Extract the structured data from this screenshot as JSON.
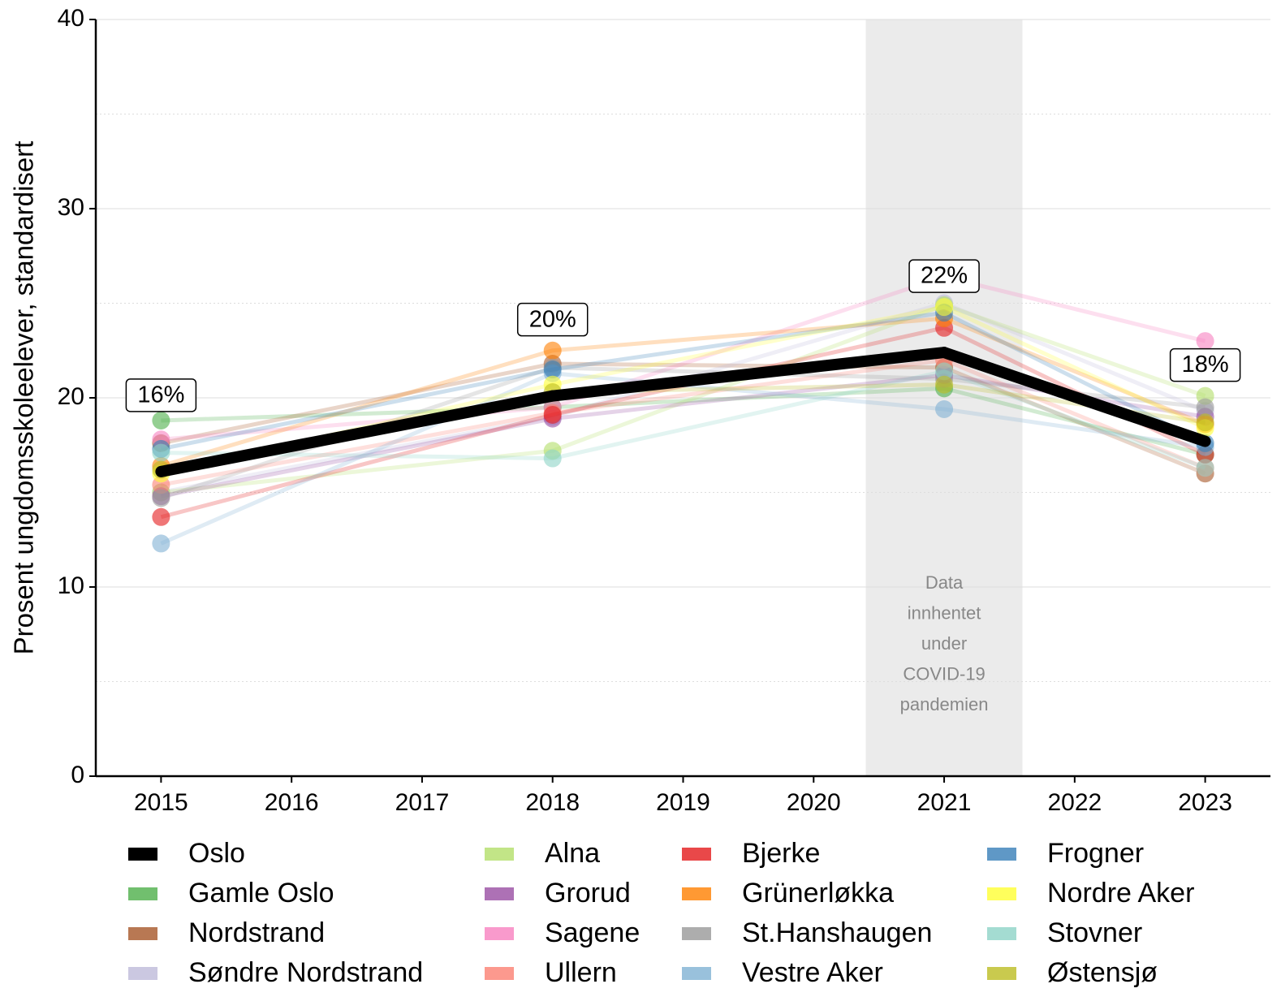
{
  "chart_data": {
    "type": "line",
    "y_label": "Prosent ungdomsskoleelever, standardisert",
    "x": [
      2015,
      2018,
      2021,
      2023
    ],
    "xlim": [
      2014.5,
      2023.5
    ],
    "xticks": [
      2015,
      2016,
      2017,
      2018,
      2019,
      2020,
      2021,
      2022,
      2023
    ],
    "ylim": [
      0,
      40
    ],
    "yticks": [
      0,
      10,
      20,
      30,
      40
    ],
    "minor_yticks": [
      5,
      15,
      25,
      35
    ],
    "grid": true,
    "shade": [
      2020.4,
      2021.6
    ],
    "annotation": [
      "Data",
      "innhentet",
      "under",
      "COVID-19",
      "pandemien"
    ],
    "legend": "bottom",
    "series": [
      {
        "name": "Oslo",
        "color": "#000000",
        "values": [
          16.1,
          20.1,
          22.4,
          17.7
        ],
        "value_labels": [
          "16%",
          "20%",
          "22%",
          "18%"
        ]
      },
      {
        "name": "Gamle Oslo",
        "color": "#4daf4a",
        "values": [
          18.8,
          19.5,
          20.5,
          17.0
        ]
      },
      {
        "name": "Nordstrand",
        "color": "#a65628",
        "values": [
          17.6,
          21.8,
          21.6,
          16.0
        ]
      },
      {
        "name": "Søndre Nordstrand",
        "color": "#bebada",
        "values": [
          15.0,
          19.0,
          25.0,
          19.3
        ]
      },
      {
        "name": "Alna",
        "color": "#b3de69",
        "values": [
          15.0,
          17.2,
          24.9,
          20.1
        ]
      },
      {
        "name": "Grorud",
        "color": "#984ea3",
        "values": [
          14.8,
          18.9,
          21.2,
          19.0
        ]
      },
      {
        "name": "Sagene",
        "color": "#f781bf",
        "values": [
          17.8,
          19.5,
          26.4,
          23.0
        ]
      },
      {
        "name": "Ullern",
        "color": "#fb8072",
        "values": [
          15.4,
          19.2,
          22.0,
          16.3
        ]
      },
      {
        "name": "Bjerke",
        "color": "#e41a1c",
        "values": [
          13.7,
          19.1,
          23.7,
          17.0
        ]
      },
      {
        "name": "Grünerløkka",
        "color": "#ff7f00",
        "values": [
          16.4,
          22.5,
          24.2,
          18.6
        ]
      },
      {
        "name": "St.Hanshaugen",
        "color": "#999999",
        "values": [
          14.7,
          21.6,
          21.0,
          19.5
        ]
      },
      {
        "name": "Vestre Aker",
        "color": "#80b1d3",
        "values": [
          12.3,
          21.3,
          19.4,
          17.4
        ]
      },
      {
        "name": "Frogner",
        "color": "#377eb8",
        "values": [
          17.3,
          21.5,
          24.5,
          17.6
        ]
      },
      {
        "name": "Nordre Aker",
        "color": "#ffff33",
        "values": [
          16.0,
          20.7,
          24.8,
          18.4
        ]
      },
      {
        "name": "Stovner",
        "color": "#8dd3c7",
        "values": [
          17.1,
          16.8,
          21.4,
          16.3
        ]
      },
      {
        "name": "Østensjø",
        "color": "#bcbd22",
        "values": [
          16.2,
          20.3,
          20.7,
          18.7
        ]
      }
    ]
  }
}
